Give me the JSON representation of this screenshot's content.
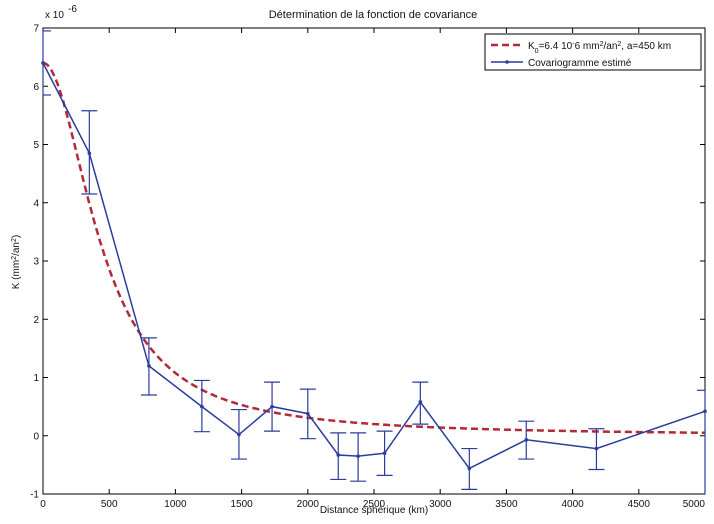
{
  "chart_data": {
    "type": "line",
    "title": "Détermination de la fonction de covariance",
    "xlabel": "Distance sphérique (km)",
    "ylabel": "K (mm²/an²)",
    "y_multiplier": "x 10",
    "y_multiplier_exp": "-6",
    "xlim": [
      0,
      5000
    ],
    "ylim": [
      -1,
      7
    ],
    "x_ticks": [
      "0",
      "500",
      "1000",
      "1500",
      "2000",
      "2500",
      "3000",
      "3500",
      "4000",
      "4500",
      "5000"
    ],
    "y_ticks": [
      "-1",
      "0",
      "1",
      "2",
      "3",
      "4",
      "5",
      "6",
      "7"
    ],
    "grid": false,
    "legend_position": "top-right",
    "legend": {
      "model_label": "K₀=6.4 10^-6 mm²/an², a=450 km",
      "empirical_label": "Covariogramme estimé"
    },
    "series": [
      {
        "name": "K₀=6.4 10^-6 mm²/an², a=450 km",
        "style": "dashed",
        "color": "#b22a3a",
        "model": {
          "K0": 6.4,
          "a": 450
        }
      },
      {
        "name": "Covariogramme estimé",
        "style": "solid-errorbars",
        "color": "#2a3c9c",
        "x": [
          0,
          350,
          800,
          1200,
          1480,
          1730,
          2000,
          2230,
          2380,
          2580,
          2850,
          3220,
          3650,
          4180,
          5000
        ],
        "values": [
          6.4,
          4.85,
          1.2,
          0.5,
          0.02,
          0.5,
          0.38,
          -0.33,
          -0.35,
          -0.3,
          0.58,
          -0.56,
          -0.07,
          -0.22,
          0.42
        ],
        "err_low": [
          5.85,
          4.15,
          0.7,
          0.07,
          -0.4,
          0.08,
          -0.05,
          -0.75,
          -0.78,
          -0.68,
          0.2,
          -0.92,
          -0.4,
          -0.58,
          null
        ],
        "err_high": [
          6.95,
          5.58,
          1.68,
          0.95,
          0.45,
          0.92,
          0.8,
          0.05,
          0.05,
          0.08,
          0.92,
          -0.22,
          0.25,
          0.12,
          0.78
        ]
      }
    ]
  }
}
